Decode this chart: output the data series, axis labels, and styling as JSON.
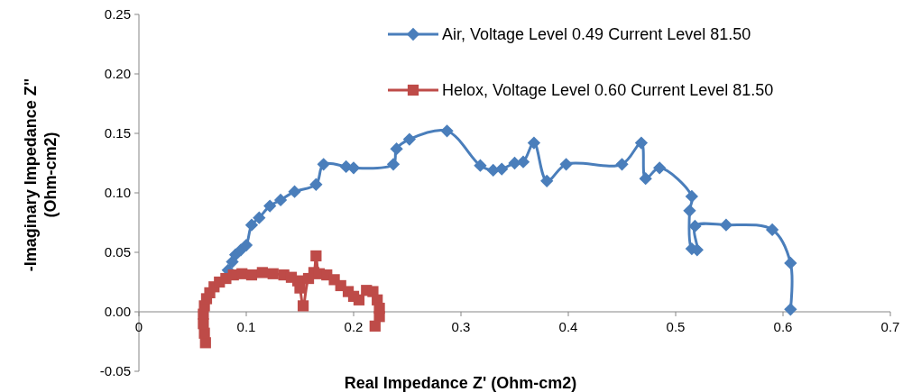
{
  "chart_data": {
    "type": "line",
    "xlabel": "Real Impedance Z' (Ohm-cm2)",
    "ylabel": "-Imaginary Impedance Z\" (Ohm-cm2)",
    "xlim": [
      0,
      0.7
    ],
    "ylim": [
      -0.05,
      0.25
    ],
    "xticks": [
      0,
      0.1,
      0.2,
      0.3,
      0.4,
      0.5,
      0.6,
      0.7
    ],
    "yticks": [
      {
        "value": -0.05,
        "label": "-0.05"
      },
      {
        "value": 0,
        "label": "0.00"
      },
      {
        "value": 0.05,
        "label": "0.05"
      },
      {
        "value": 0.1,
        "label": "0.10"
      },
      {
        "value": 0.15,
        "label": "0.15"
      },
      {
        "value": 0.2,
        "label": "0.20"
      },
      {
        "value": 0.25,
        "label": "0.25"
      }
    ],
    "grid": false,
    "legend": "top right",
    "line_style": "solid",
    "series": [
      {
        "name": "Air, Voltage Level 0.49 Current Level 81.50",
        "color": "#4a7ebb",
        "marker": "diamond",
        "x": [
          0.083,
          0.087,
          0.09,
          0.095,
          0.1,
          0.105,
          0.112,
          0.122,
          0.132,
          0.145,
          0.165,
          0.172,
          0.193,
          0.2,
          0.237,
          0.24,
          0.252,
          0.287,
          0.318,
          0.33,
          0.338,
          0.35,
          0.358,
          0.368,
          0.38,
          0.398,
          0.45,
          0.468,
          0.472,
          0.485,
          0.515,
          0.513,
          0.515,
          0.52,
          0.518,
          0.547,
          0.59,
          0.607,
          0.607
        ],
        "values": [
          0.035,
          0.042,
          0.048,
          0.052,
          0.056,
          0.073,
          0.079,
          0.089,
          0.094,
          0.101,
          0.107,
          0.124,
          0.122,
          0.121,
          0.124,
          0.137,
          0.145,
          0.152,
          0.123,
          0.119,
          0.12,
          0.125,
          0.126,
          0.142,
          0.11,
          0.124,
          0.124,
          0.142,
          0.112,
          0.121,
          0.097,
          0.085,
          0.053,
          0.052,
          0.072,
          0.073,
          0.069,
          0.041,
          0.002
        ]
      },
      {
        "name": "Helox, Voltage Level 0.60 Current Level 81.50",
        "color": "#be4b48",
        "marker": "square",
        "x": [
          0.062,
          0.061,
          0.06,
          0.06,
          0.061,
          0.063,
          0.066,
          0.07,
          0.075,
          0.081,
          0.088,
          0.096,
          0.105,
          0.115,
          0.125,
          0.135,
          0.142,
          0.148,
          0.15,
          0.153,
          0.158,
          0.163,
          0.165,
          0.168,
          0.175,
          0.182,
          0.188,
          0.195,
          0.2,
          0.205,
          0.212,
          0.218,
          0.222,
          0.224,
          0.224,
          0.22
        ],
        "values": [
          -0.026,
          -0.018,
          -0.01,
          -0.002,
          0.005,
          0.011,
          0.016,
          0.021,
          0.025,
          0.028,
          0.031,
          0.032,
          0.031,
          0.033,
          0.032,
          0.031,
          0.029,
          0.026,
          0.02,
          0.005,
          0.028,
          0.033,
          0.047,
          0.032,
          0.031,
          0.027,
          0.022,
          0.017,
          0.013,
          0.01,
          0.018,
          0.017,
          0.01,
          0.003,
          -0.004,
          -0.012
        ]
      }
    ]
  }
}
